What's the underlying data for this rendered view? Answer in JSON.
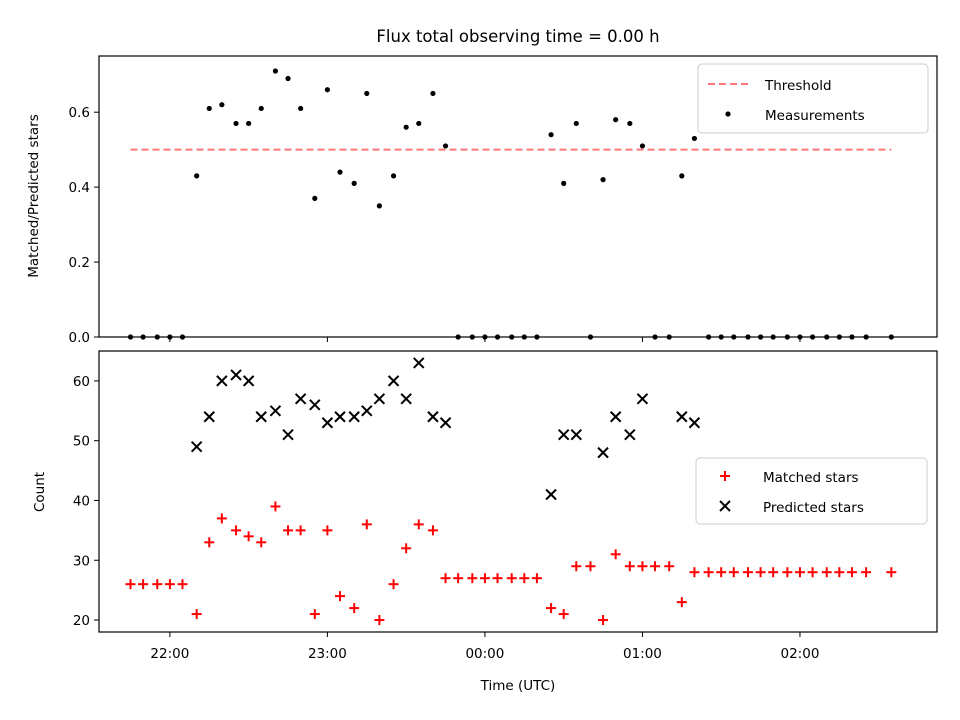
{
  "chart_data": [
    {
      "type": "scatter",
      "title": "Flux total observing time = 0.00 h",
      "xlabel": "",
      "ylabel": "Matched/Predicted stars",
      "xlim": [
        -2.45,
        2.87
      ],
      "ylim": [
        0,
        0.75
      ],
      "xticks": [
        -2,
        -1,
        0,
        1,
        2
      ],
      "yticks": [
        0.0,
        0.2,
        0.4,
        0.6
      ],
      "ytick_labels": [
        "0.0",
        "0.2",
        "0.4",
        "0.6"
      ],
      "legend_position": "upper right",
      "threshold": {
        "name": "Threshold",
        "y": 0.5,
        "x_range": [
          -2.25,
          2.58
        ],
        "color": "#ff7777",
        "style": "dashed"
      },
      "series": [
        {
          "name": "Measurements",
          "color": "#000000",
          "marker": "dot",
          "points": [
            [
              -2.25,
              0
            ],
            [
              -2.17,
              0
            ],
            [
              -2.08,
              0
            ],
            [
              -2.0,
              0
            ],
            [
              -1.92,
              0
            ],
            [
              -1.83,
              0.43
            ],
            [
              -1.75,
              0.61
            ],
            [
              -1.67,
              0.62
            ],
            [
              -1.58,
              0.57
            ],
            [
              -1.5,
              0.57
            ],
            [
              -1.42,
              0.61
            ],
            [
              -1.33,
              0.71
            ],
            [
              -1.25,
              0.69
            ],
            [
              -1.17,
              0.61
            ],
            [
              -1.08,
              0.37
            ],
            [
              -1.0,
              0.66
            ],
            [
              -0.92,
              0.44
            ],
            [
              -0.83,
              0.41
            ],
            [
              -0.75,
              0.65
            ],
            [
              -0.67,
              0.35
            ],
            [
              -0.58,
              0.43
            ],
            [
              -0.5,
              0.56
            ],
            [
              -0.42,
              0.57
            ],
            [
              -0.33,
              0.65
            ],
            [
              -0.25,
              0.51
            ],
            [
              -0.17,
              0
            ],
            [
              -0.08,
              0
            ],
            [
              0.0,
              0
            ],
            [
              0.08,
              0
            ],
            [
              0.17,
              0
            ],
            [
              0.25,
              0
            ],
            [
              0.33,
              0
            ],
            [
              0.42,
              0.54
            ],
            [
              0.5,
              0.41
            ],
            [
              0.58,
              0.57
            ],
            [
              0.67,
              0
            ],
            [
              0.75,
              0.42
            ],
            [
              0.83,
              0.58
            ],
            [
              0.92,
              0.57
            ],
            [
              1.0,
              0.51
            ],
            [
              1.08,
              0
            ],
            [
              1.17,
              0
            ],
            [
              1.25,
              0.43
            ],
            [
              1.33,
              0.53
            ],
            [
              1.42,
              0
            ],
            [
              1.5,
              0
            ],
            [
              1.58,
              0
            ],
            [
              1.67,
              0
            ],
            [
              1.75,
              0
            ],
            [
              1.83,
              0
            ],
            [
              1.92,
              0
            ],
            [
              2.0,
              0
            ],
            [
              2.08,
              0
            ],
            [
              2.17,
              0
            ],
            [
              2.25,
              0
            ],
            [
              2.33,
              0
            ],
            [
              2.42,
              0
            ],
            [
              2.58,
              0
            ]
          ]
        }
      ]
    },
    {
      "type": "scatter",
      "title": "",
      "xlabel": "Time (UTC)",
      "ylabel": "Count",
      "xlim": [
        -2.45,
        2.87
      ],
      "ylim": [
        18,
        65
      ],
      "xticks": [
        -2,
        -1,
        0,
        1,
        2
      ],
      "xtick_labels": [
        "22:00",
        "23:00",
        "00:00",
        "01:00",
        "02:00"
      ],
      "yticks": [
        20,
        30,
        40,
        50,
        60
      ],
      "ytick_labels": [
        "20",
        "30",
        "40",
        "50",
        "60"
      ],
      "legend_position": "center right",
      "series": [
        {
          "name": "Matched stars",
          "color": "#ff0000",
          "marker": "plus",
          "points": [
            [
              -2.25,
              26
            ],
            [
              -2.17,
              26
            ],
            [
              -2.08,
              26
            ],
            [
              -2.0,
              26
            ],
            [
              -1.92,
              26
            ],
            [
              -1.83,
              21
            ],
            [
              -1.75,
              33
            ],
            [
              -1.67,
              37
            ],
            [
              -1.58,
              35
            ],
            [
              -1.5,
              34
            ],
            [
              -1.42,
              33
            ],
            [
              -1.33,
              39
            ],
            [
              -1.25,
              35
            ],
            [
              -1.17,
              35
            ],
            [
              -1.08,
              21
            ],
            [
              -1.0,
              35
            ],
            [
              -0.92,
              24
            ],
            [
              -0.83,
              22
            ],
            [
              -0.75,
              36
            ],
            [
              -0.67,
              20
            ],
            [
              -0.58,
              26
            ],
            [
              -0.5,
              32
            ],
            [
              -0.42,
              36
            ],
            [
              -0.33,
              35
            ],
            [
              -0.25,
              27
            ],
            [
              -0.17,
              27
            ],
            [
              -0.08,
              27
            ],
            [
              0.0,
              27
            ],
            [
              0.08,
              27
            ],
            [
              0.17,
              27
            ],
            [
              0.25,
              27
            ],
            [
              0.33,
              27
            ],
            [
              0.42,
              22
            ],
            [
              0.5,
              21
            ],
            [
              0.58,
              29
            ],
            [
              0.67,
              29
            ],
            [
              0.75,
              20
            ],
            [
              0.83,
              31
            ],
            [
              0.92,
              29
            ],
            [
              1.0,
              29
            ],
            [
              1.08,
              29
            ],
            [
              1.17,
              29
            ],
            [
              1.25,
              23
            ],
            [
              1.33,
              28
            ],
            [
              1.42,
              28
            ],
            [
              1.5,
              28
            ],
            [
              1.58,
              28
            ],
            [
              1.67,
              28
            ],
            [
              1.75,
              28
            ],
            [
              1.83,
              28
            ],
            [
              1.92,
              28
            ],
            [
              2.0,
              28
            ],
            [
              2.08,
              28
            ],
            [
              2.17,
              28
            ],
            [
              2.25,
              28
            ],
            [
              2.33,
              28
            ],
            [
              2.42,
              28
            ],
            [
              2.58,
              28
            ]
          ]
        },
        {
          "name": "Predicted stars",
          "color": "#000000",
          "marker": "x",
          "points": [
            [
              -1.83,
              49
            ],
            [
              -1.75,
              54
            ],
            [
              -1.67,
              60
            ],
            [
              -1.58,
              61
            ],
            [
              -1.5,
              60
            ],
            [
              -1.42,
              54
            ],
            [
              -1.33,
              55
            ],
            [
              -1.25,
              51
            ],
            [
              -1.17,
              57
            ],
            [
              -1.08,
              56
            ],
            [
              -1.0,
              53
            ],
            [
              -0.92,
              54
            ],
            [
              -0.83,
              54
            ],
            [
              -0.75,
              55
            ],
            [
              -0.67,
              57
            ],
            [
              -0.58,
              60
            ],
            [
              -0.5,
              57
            ],
            [
              -0.42,
              63
            ],
            [
              -0.33,
              54
            ],
            [
              -0.25,
              53
            ],
            [
              0.42,
              41
            ],
            [
              0.5,
              51
            ],
            [
              0.58,
              51
            ],
            [
              0.75,
              48
            ],
            [
              0.83,
              54
            ],
            [
              0.92,
              51
            ],
            [
              1.0,
              57
            ],
            [
              1.25,
              54
            ],
            [
              1.33,
              53
            ]
          ]
        }
      ]
    }
  ]
}
